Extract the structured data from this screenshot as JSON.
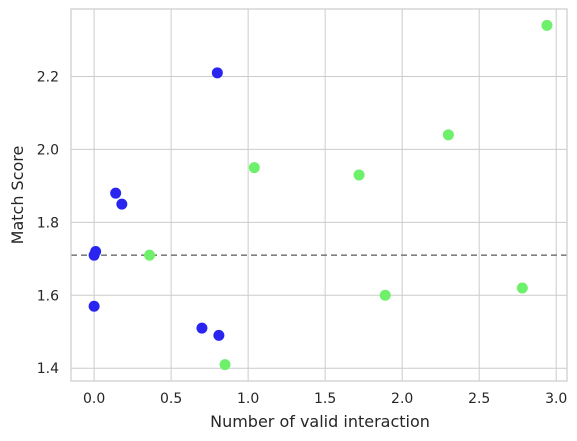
{
  "chart_data": {
    "type": "scatter",
    "xlabel": "Number of valid interaction",
    "ylabel": "Match Score",
    "xlim": [
      -0.15,
      3.07
    ],
    "ylim": [
      1.365,
      2.385
    ],
    "xticks": [
      0.0,
      0.5,
      1.0,
      1.5,
      2.0,
      2.5,
      3.0
    ],
    "xtick_labels": [
      "0.0",
      "0.5",
      "1.0",
      "1.5",
      "2.0",
      "2.5",
      "3.0"
    ],
    "yticks": [
      1.4,
      1.6,
      1.8,
      2.0,
      2.2
    ],
    "ytick_labels": [
      "1.4",
      "1.6",
      "1.8",
      "2.0",
      "2.2"
    ],
    "grid": true,
    "reference_line": {
      "y": 1.71,
      "style": "dashed",
      "color": "#808080"
    },
    "series": [
      {
        "color": "#2a24f0",
        "points": [
          {
            "x": 0.01,
            "y": 1.72
          },
          {
            "x": 0.0,
            "y": 1.71
          },
          {
            "x": 0.0,
            "y": 1.57
          },
          {
            "x": 0.14,
            "y": 1.88
          },
          {
            "x": 0.18,
            "y": 1.85
          },
          {
            "x": 0.7,
            "y": 1.51
          },
          {
            "x": 0.8,
            "y": 2.21
          },
          {
            "x": 0.81,
            "y": 1.49
          }
        ]
      },
      {
        "color": "#6ef06a",
        "points": [
          {
            "x": 0.36,
            "y": 1.71
          },
          {
            "x": 0.85,
            "y": 1.41
          },
          {
            "x": 1.04,
            "y": 1.95
          },
          {
            "x": 1.72,
            "y": 1.93
          },
          {
            "x": 1.89,
            "y": 1.6
          },
          {
            "x": 2.3,
            "y": 2.04
          },
          {
            "x": 2.78,
            "y": 1.62
          },
          {
            "x": 2.94,
            "y": 2.34
          }
        ]
      }
    ]
  }
}
